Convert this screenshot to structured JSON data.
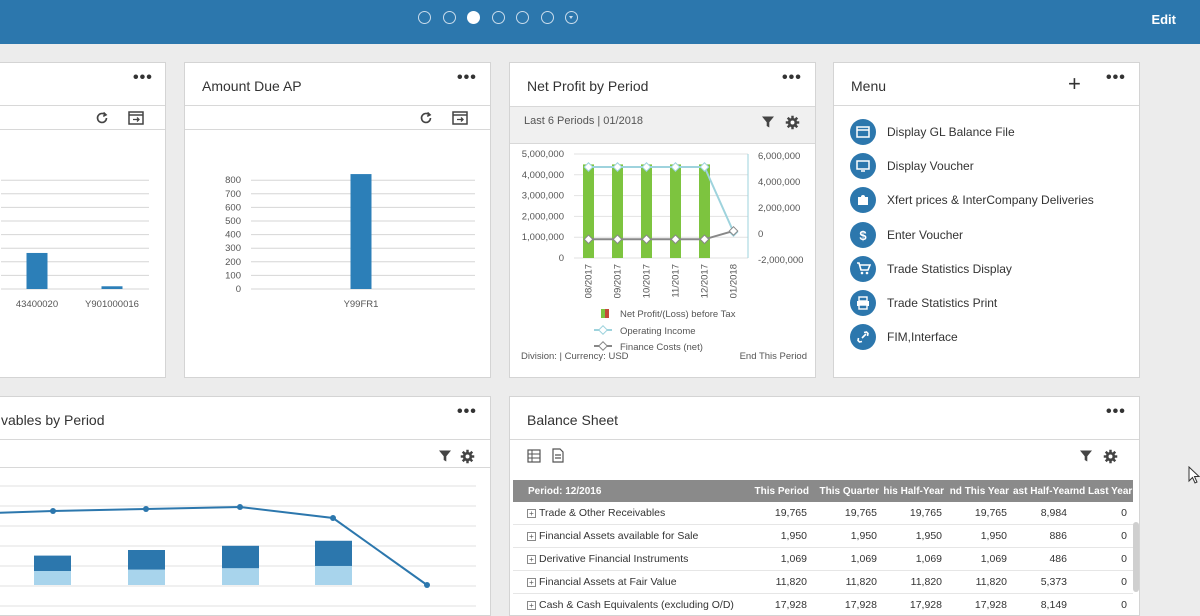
{
  "header": {
    "edit_label": "Edit",
    "pager_count": 7,
    "active_page": 2
  },
  "widgets": {
    "receivables_bar": {
      "menu_label": "•••",
      "chart_data": {
        "type": "bar",
        "categories": [
          "43400020",
          "Y901000016"
        ],
        "values": [
          265,
          20
        ],
        "ylim": [
          0,
          900
        ]
      }
    },
    "amount_due_ap": {
      "title": "Amount Due AP",
      "menu_label": "•••",
      "chart_data": {
        "type": "bar",
        "categories": [
          "Y99FR1"
        ],
        "values": [
          845
        ],
        "yticks": [
          "800",
          "700",
          "600",
          "500",
          "400",
          "300",
          "200",
          "100",
          "0"
        ],
        "ylim": [
          0,
          900
        ]
      }
    },
    "net_profit": {
      "title": "Net Profit by Period",
      "menu_label": "•••",
      "subtitle": "Last 6 Periods | 01/2018",
      "footer_left": "Division:      | Currency: USD",
      "footer_right": "End This Period",
      "chart_data": {
        "type": "bar",
        "categories": [
          "08/2017",
          "09/2017",
          "10/2017",
          "11/2017",
          "12/2017",
          "01/2018"
        ],
        "yticks_left": [
          "5,000,000",
          "4,000,000",
          "3,000,000",
          "2,000,000",
          "1,000,000",
          "0"
        ],
        "yticks_right": [
          "6,000,000",
          "4,000,000",
          "2,000,000",
          "0",
          "-2,000,000"
        ],
        "ylim_left": [
          0,
          5000000
        ],
        "ylim_right": [
          -2000000,
          6000000
        ],
        "series": [
          {
            "name": "Net Profit/(Loss) before Tax",
            "type": "bar",
            "axis": "left",
            "color": "#7dc43f",
            "values": [
              4500000,
              4500000,
              4500000,
              4500000,
              4500000,
              0
            ]
          },
          {
            "name": "Operating Income",
            "type": "line",
            "axis": "right",
            "color": "#9ed3dd",
            "values": [
              5000000,
              5000000,
              5000000,
              5000000,
              5000000,
              0
            ]
          },
          {
            "name": "Finance Costs (net)",
            "type": "line",
            "axis": "left",
            "color": "#888888",
            "values": [
              900000,
              900000,
              900000,
              900000,
              900000,
              1300000
            ]
          }
        ]
      }
    },
    "menu": {
      "title": "Menu",
      "menu_label": "•••",
      "add_label": "+",
      "items": [
        {
          "label": "Display GL Balance File",
          "icon": "window-icon"
        },
        {
          "label": "Display Voucher",
          "icon": "display-icon"
        },
        {
          "label": "Xfert prices & InterCompany Deliveries",
          "icon": "puzzle-icon"
        },
        {
          "label": "Enter Voucher",
          "icon": "dollar-icon"
        },
        {
          "label": "Trade Statistics Display",
          "icon": "cart-icon"
        },
        {
          "label": "Trade Statistics Print",
          "icon": "print-icon"
        },
        {
          "label": "FIM,Interface",
          "icon": "link-icon"
        }
      ]
    },
    "receivables_period": {
      "title": "vables by Period",
      "menu_label": "•••",
      "chart_data": {
        "type": "bar",
        "series": [
          {
            "name": "",
            "type": "bar-stack-dark",
            "color": "#2c77ad",
            "values": [
              55,
              70,
              80,
              90
            ]
          },
          {
            "name": "",
            "type": "bar-stack-light",
            "color": "#a8d4ec",
            "values": [
              50,
              55,
              60,
              68
            ]
          },
          {
            "name": "",
            "type": "line",
            "color": "#2c77ad",
            "values": [
              360,
              370,
              380,
              390,
              335,
              0
            ]
          }
        ]
      }
    },
    "balance_sheet": {
      "title": "Balance Sheet",
      "menu_label": "•••",
      "columns": [
        "Period: 12/2016",
        "This Period",
        "This Quarter",
        "his Half-Year",
        "nd This Year",
        "ast Half-Year",
        "nd Last Year"
      ],
      "rows": [
        [
          "Trade & Other Receivables",
          "19,765",
          "19,765",
          "19,765",
          "19,765",
          "8,984",
          "0"
        ],
        [
          "Financial Assets available for Sale",
          "1,950",
          "1,950",
          "1,950",
          "1,950",
          "886",
          "0"
        ],
        [
          "Derivative Financial Instruments",
          "1,069",
          "1,069",
          "1,069",
          "1,069",
          "486",
          "0"
        ],
        [
          "Financial Assets at Fair Value",
          "11,820",
          "11,820",
          "11,820",
          "11,820",
          "5,373",
          "0"
        ],
        [
          "Cash & Cash Equivalents (excluding O/D)",
          "17,928",
          "17,928",
          "17,928",
          "17,928",
          "8,149",
          "0"
        ]
      ]
    }
  }
}
